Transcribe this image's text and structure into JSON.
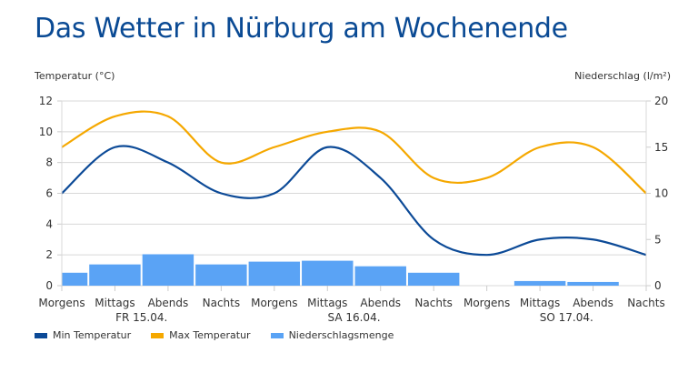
{
  "title": "Das Wetter in Nürburg am Wochenende",
  "chart_data": {
    "type": "line+bar",
    "title": "Das Wetter in Nürburg am Wochenende",
    "ylabel_left": "Temperatur (°C)",
    "ylabel_right": "Niederschlag (l/m²)",
    "ylim_left": [
      0,
      12
    ],
    "yticks_left": [
      "0",
      "2",
      "4",
      "6",
      "8",
      "10",
      "12"
    ],
    "ylim_right": [
      0,
      20
    ],
    "yticks_right": [
      "0",
      "5",
      "10",
      "15",
      "20"
    ],
    "grid": true,
    "categories": [
      "Morgens",
      "Mittags",
      "Abends",
      "Nachts",
      "Morgens",
      "Mittags",
      "Abends",
      "Nachts",
      "Morgens",
      "Mittags",
      "Abends",
      "Nachts"
    ],
    "day_labels": [
      {
        "label": "FR 15.04.",
        "center_index": 1.5
      },
      {
        "label": "SA 16.04.",
        "center_index": 5.5
      },
      {
        "label": "SO 17.04.",
        "center_index": 9.5
      }
    ],
    "series": [
      {
        "name": "Min Temperatur",
        "type": "line",
        "axis": "left",
        "color": "#0c4a97",
        "values": [
          6.0,
          9.0,
          8.0,
          6.0,
          6.0,
          9.0,
          7.0,
          3.0,
          2.0,
          3.0,
          3.0,
          2.0
        ]
      },
      {
        "name": "Max Temperatur",
        "type": "line",
        "axis": "left",
        "color": "#f5a800",
        "values": [
          9.0,
          11.0,
          11.0,
          8.0,
          9.0,
          10.0,
          10.0,
          7.0,
          7.0,
          9.0,
          9.0,
          6.0
        ]
      },
      {
        "name": "Niederschlagsmenge",
        "type": "bar",
        "axis": "right",
        "color": "#5aa3f5",
        "values": [
          1.4,
          2.3,
          3.4,
          2.3,
          2.6,
          2.7,
          2.1,
          1.4,
          0,
          0.5,
          0.4,
          0
        ]
      }
    ],
    "legend": "bottom-left"
  }
}
